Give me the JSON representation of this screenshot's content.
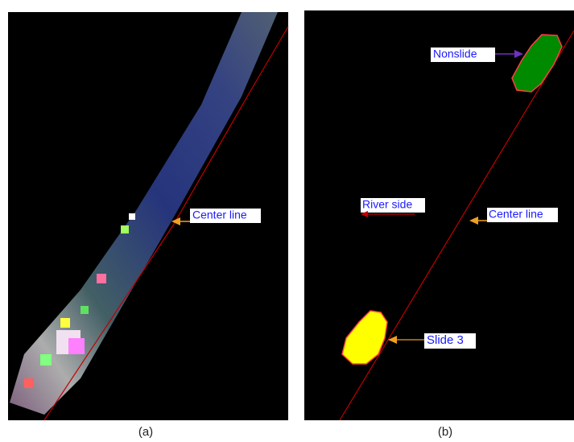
{
  "panels": [
    {
      "caption": "(a)",
      "annotations": [
        {
          "label": "Center line"
        }
      ]
    },
    {
      "caption": "(b)",
      "annotations": [
        {
          "label": "Nonslide"
        },
        {
          "label": "River side"
        },
        {
          "label": "Center line"
        },
        {
          "label": "Slide 3"
        }
      ]
    }
  ]
}
